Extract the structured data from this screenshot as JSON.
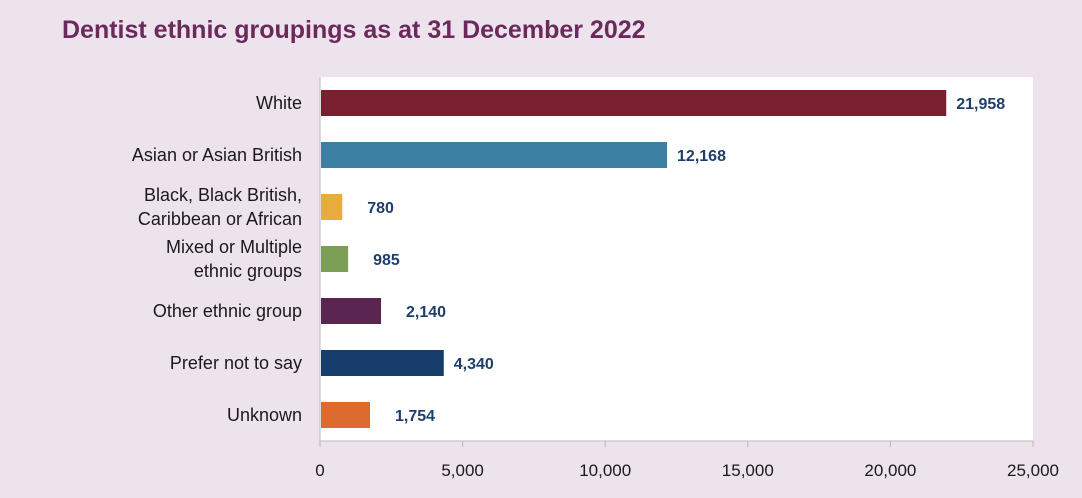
{
  "chart_data": {
    "type": "bar",
    "orientation": "horizontal",
    "title": "Dentist ethnic groupings as at 31 December 2022",
    "categories": [
      [
        "White"
      ],
      [
        "Asian or Asian British"
      ],
      [
        "Black, Black British,",
        "Caribbean or African"
      ],
      [
        "Mixed or Multiple",
        "ethnic groups"
      ],
      [
        "Other ethnic group"
      ],
      [
        "Prefer not to say"
      ],
      [
        "Unknown"
      ]
    ],
    "values": [
      21958,
      12168,
      780,
      985,
      2140,
      4340,
      1754
    ],
    "value_labels": [
      "21,958",
      "12,168",
      "780",
      "985",
      "2,140",
      "4,340",
      "1,754"
    ],
    "colors": [
      "#7a1f30",
      "#3b7fa3",
      "#e8ab40",
      "#7d9e55",
      "#5a2550",
      "#163d6b",
      "#dd6a2f"
    ],
    "xlim": [
      0,
      25000
    ],
    "xticks": [
      0,
      5000,
      10000,
      15000,
      20000,
      25000
    ],
    "xtick_labels": [
      "0",
      "5,000",
      "10,000",
      "15,000",
      "20,000",
      "25,000"
    ],
    "grid": false,
    "plot_background": "#ffffff",
    "page_background": "#ece3ec",
    "title_color": "#6b2a5b",
    "value_label_color": "#1f3f6b"
  }
}
